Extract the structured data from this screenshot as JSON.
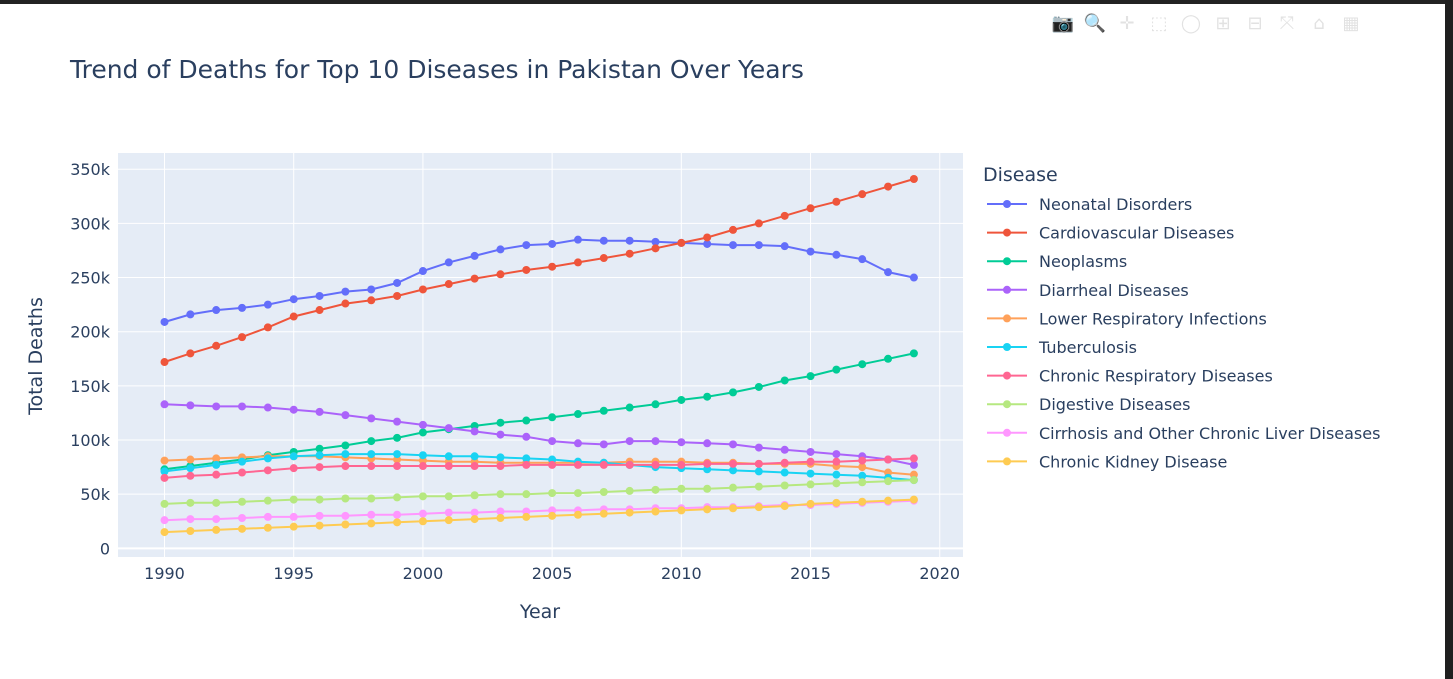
{
  "modebar": {
    "buttons": [
      {
        "name": "camera-icon",
        "glyph": "📷"
      },
      {
        "name": "zoom-icon",
        "glyph": "🔍"
      },
      {
        "name": "pan-icon",
        "glyph": "✛"
      },
      {
        "name": "box-select-icon",
        "glyph": "⬚"
      },
      {
        "name": "lasso-select-icon",
        "glyph": "◯"
      },
      {
        "name": "zoom-in-icon",
        "glyph": "⊞"
      },
      {
        "name": "zoom-out-icon",
        "glyph": "⊟"
      },
      {
        "name": "autoscale-icon",
        "glyph": "⤧"
      },
      {
        "name": "reset-axes-icon",
        "glyph": "⌂"
      },
      {
        "name": "plotly-logo-icon",
        "glyph": "▦"
      }
    ]
  },
  "chart_data": {
    "type": "line",
    "title": "Trend of Deaths for Top 10 Diseases in Pakistan Over Years",
    "xlabel": "Year",
    "ylabel": "Total Deaths",
    "legend_title": "Disease",
    "legend_position": "right",
    "grid": true,
    "xlim": [
      1988.2,
      2020.9
    ],
    "ylim": [
      -8000,
      365000
    ],
    "x_ticks": [
      1990,
      1995,
      2000,
      2005,
      2010,
      2015,
      2020
    ],
    "x_tick_labels": [
      "1990",
      "1995",
      "2000",
      "2005",
      "2010",
      "2015",
      "2020"
    ],
    "y_ticks": [
      0,
      50000,
      100000,
      150000,
      200000,
      250000,
      300000,
      350000
    ],
    "y_tick_labels": [
      "0",
      "50k",
      "100k",
      "150k",
      "200k",
      "250k",
      "300k",
      "350k"
    ],
    "x": [
      1990,
      1991,
      1992,
      1993,
      1994,
      1995,
      1996,
      1997,
      1998,
      1999,
      2000,
      2001,
      2002,
      2003,
      2004,
      2005,
      2006,
      2007,
      2008,
      2009,
      2010,
      2011,
      2012,
      2013,
      2014,
      2015,
      2016,
      2017,
      2018,
      2019
    ],
    "series": [
      {
        "name": "Neonatal Disorders",
        "color": "#636efa",
        "values": [
          209000,
          216000,
          220000,
          222000,
          225000,
          230000,
          233000,
          237000,
          239000,
          245000,
          256000,
          264000,
          270000,
          276000,
          280000,
          281000,
          285000,
          284000,
          284000,
          283000,
          282000,
          281000,
          280000,
          280000,
          279000,
          274000,
          271000,
          267000,
          255000,
          250000
        ]
      },
      {
        "name": "Cardiovascular Diseases",
        "color": "#ef553b",
        "values": [
          172000,
          180000,
          187000,
          195000,
          204000,
          214000,
          220000,
          226000,
          229000,
          233000,
          239000,
          244000,
          249000,
          253000,
          257000,
          260000,
          264000,
          268000,
          272000,
          277000,
          282000,
          287000,
          294000,
          300000,
          307000,
          314000,
          320000,
          327000,
          334000,
          341000
        ]
      },
      {
        "name": "Neoplasms",
        "color": "#00cc96",
        "values": [
          73000,
          76000,
          79000,
          82000,
          86000,
          89000,
          92000,
          95000,
          99000,
          102000,
          107000,
          110000,
          113000,
          116000,
          118000,
          121000,
          124000,
          127000,
          130000,
          133000,
          137000,
          140000,
          144000,
          149000,
          155000,
          159000,
          165000,
          170000,
          175000,
          180000
        ]
      },
      {
        "name": "Diarrheal Diseases",
        "color": "#ab63fa",
        "values": [
          133000,
          132000,
          131000,
          131000,
          130000,
          128000,
          126000,
          123000,
          120000,
          117000,
          114000,
          111000,
          108000,
          105000,
          103000,
          99000,
          97000,
          96000,
          99000,
          99000,
          98000,
          97000,
          96000,
          93000,
          91000,
          89000,
          87000,
          85000,
          82000,
          77000
        ]
      },
      {
        "name": "Lower Respiratory Infections",
        "color": "#ffa15a",
        "values": [
          81000,
          82000,
          83000,
          84000,
          85000,
          85000,
          85000,
          84000,
          83000,
          82000,
          81000,
          80000,
          80000,
          79000,
          79000,
          79000,
          79000,
          79000,
          80000,
          80000,
          80000,
          79000,
          79000,
          78000,
          78000,
          78000,
          76000,
          75000,
          70000,
          68000
        ]
      },
      {
        "name": "Tuberculosis",
        "color": "#19d3f3",
        "values": [
          71000,
          74000,
          77000,
          80000,
          83000,
          85000,
          86000,
          87000,
          87000,
          87000,
          86000,
          85000,
          85000,
          84000,
          83000,
          82000,
          80000,
          79000,
          77000,
          75000,
          74000,
          73000,
          72000,
          71000,
          70000,
          69000,
          68000,
          67000,
          65000,
          63000
        ]
      },
      {
        "name": "Chronic Respiratory Diseases",
        "color": "#ff6692",
        "values": [
          65000,
          67000,
          68000,
          70000,
          72000,
          74000,
          75000,
          76000,
          76000,
          76000,
          76000,
          76000,
          76000,
          76000,
          77000,
          77000,
          77000,
          77000,
          77000,
          77000,
          77000,
          78000,
          78000,
          78000,
          79000,
          80000,
          80000,
          81000,
          82000,
          83000
        ]
      },
      {
        "name": "Digestive Diseases",
        "color": "#b6e880",
        "values": [
          41000,
          42000,
          42000,
          43000,
          44000,
          45000,
          45000,
          46000,
          46000,
          47000,
          48000,
          48000,
          49000,
          50000,
          50000,
          51000,
          51000,
          52000,
          53000,
          54000,
          55000,
          55000,
          56000,
          57000,
          58000,
          59000,
          60000,
          61000,
          62000,
          63000
        ]
      },
      {
        "name": "Cirrhosis and Other Chronic Liver Diseases",
        "color": "#ff97ff",
        "values": [
          26000,
          27000,
          27000,
          28000,
          29000,
          29000,
          30000,
          30000,
          31000,
          31000,
          32000,
          33000,
          33000,
          34000,
          34000,
          35000,
          35000,
          36000,
          36000,
          37000,
          37000,
          38000,
          38000,
          39000,
          40000,
          40000,
          41000,
          42000,
          43000,
          44000
        ]
      },
      {
        "name": "Chronic Kidney Disease",
        "color": "#fecb52",
        "values": [
          15000,
          16000,
          17000,
          18000,
          19000,
          20000,
          21000,
          22000,
          23000,
          24000,
          25000,
          26000,
          27000,
          28000,
          29000,
          30000,
          31000,
          32000,
          33000,
          34000,
          35000,
          36000,
          37000,
          38000,
          39000,
          41000,
          42000,
          43000,
          44000,
          45000
        ]
      }
    ]
  }
}
